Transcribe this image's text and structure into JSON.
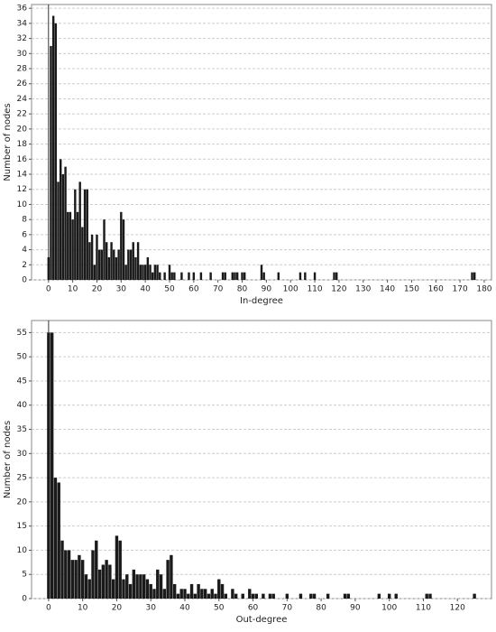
{
  "chart_data": [
    {
      "type": "bar",
      "xlabel": "In-degree",
      "ylabel": "Number of nodes",
      "color": "#1a1a1a",
      "grid": true,
      "x": [
        0,
        1,
        2,
        3,
        4,
        5,
        6,
        7,
        8,
        9,
        10,
        11,
        12,
        13,
        14,
        15,
        16,
        17,
        18,
        19,
        20,
        21,
        22,
        23,
        24,
        25,
        26,
        27,
        28,
        29,
        30,
        31,
        32,
        33,
        34,
        35,
        36,
        37,
        38,
        39,
        40,
        41,
        42,
        43,
        44,
        45,
        46,
        48,
        50,
        51,
        52,
        55,
        58,
        60,
        63,
        67,
        72,
        73,
        76,
        77,
        78,
        80,
        81,
        88,
        89,
        95,
        104,
        106,
        110,
        118,
        119,
        175,
        176
      ],
      "values": [
        3,
        31,
        35,
        34,
        13,
        16,
        14,
        15,
        9,
        9,
        8,
        12,
        9,
        13,
        7,
        12,
        12,
        5,
        6,
        2,
        6,
        4,
        4,
        8,
        5,
        3,
        5,
        4,
        3,
        4,
        9,
        8,
        2,
        4,
        4,
        5,
        3,
        5,
        2,
        2,
        2,
        3,
        2,
        1,
        2,
        2,
        1,
        1,
        2,
        1,
        1,
        1,
        1,
        1,
        1,
        1,
        1,
        1,
        1,
        1,
        1,
        1,
        1,
        2,
        1,
        1,
        1,
        1,
        1,
        1,
        1,
        1,
        1
      ],
      "xlim": [
        -7,
        183
      ],
      "ylim": [
        0,
        36.5
      ],
      "xticks": [
        0,
        10,
        20,
        30,
        40,
        50,
        60,
        70,
        80,
        90,
        100,
        110,
        120,
        130,
        140,
        150,
        160,
        170,
        180
      ],
      "yticks": [
        0,
        2,
        4,
        6,
        8,
        10,
        12,
        14,
        16,
        18,
        20,
        22,
        24,
        26,
        28,
        30,
        32,
        34,
        36
      ]
    },
    {
      "type": "bar",
      "xlabel": "Out-degree",
      "ylabel": "Number of nodes",
      "color": "#1a1a1a",
      "grid": true,
      "x": [
        0,
        1,
        2,
        3,
        4,
        5,
        6,
        7,
        8,
        9,
        10,
        11,
        12,
        13,
        14,
        15,
        16,
        17,
        18,
        19,
        20,
        21,
        22,
        23,
        24,
        25,
        26,
        27,
        28,
        29,
        30,
        31,
        32,
        33,
        34,
        35,
        36,
        37,
        38,
        39,
        40,
        41,
        42,
        43,
        44,
        45,
        46,
        47,
        48,
        49,
        50,
        51,
        52,
        54,
        55,
        57,
        59,
        60,
        61,
        63,
        65,
        66,
        70,
        74,
        77,
        78,
        82,
        87,
        88,
        97,
        100,
        102,
        111,
        112,
        125
      ],
      "values": [
        55,
        55,
        25,
        24,
        12,
        10,
        10,
        8,
        8,
        9,
        8,
        5,
        4,
        10,
        12,
        6,
        7,
        8,
        7,
        4,
        13,
        12,
        4,
        5,
        3,
        6,
        5,
        5,
        5,
        4,
        3,
        2,
        6,
        5,
        2,
        8,
        9,
        3,
        1,
        2,
        2,
        1,
        3,
        1,
        3,
        2,
        2,
        1,
        2,
        1,
        4,
        3,
        1,
        2,
        1,
        1,
        2,
        1,
        1,
        1,
        1,
        1,
        1,
        1,
        1,
        1,
        1,
        1,
        1,
        1,
        1,
        1,
        1,
        1,
        1
      ],
      "xlim": [
        -5,
        130
      ],
      "ylim": [
        0,
        57.5
      ],
      "xticks": [
        0,
        10,
        20,
        30,
        40,
        50,
        60,
        70,
        80,
        90,
        100,
        110,
        120
      ],
      "yticks": [
        0,
        5,
        10,
        15,
        20,
        25,
        30,
        35,
        40,
        45,
        50,
        55
      ]
    }
  ]
}
